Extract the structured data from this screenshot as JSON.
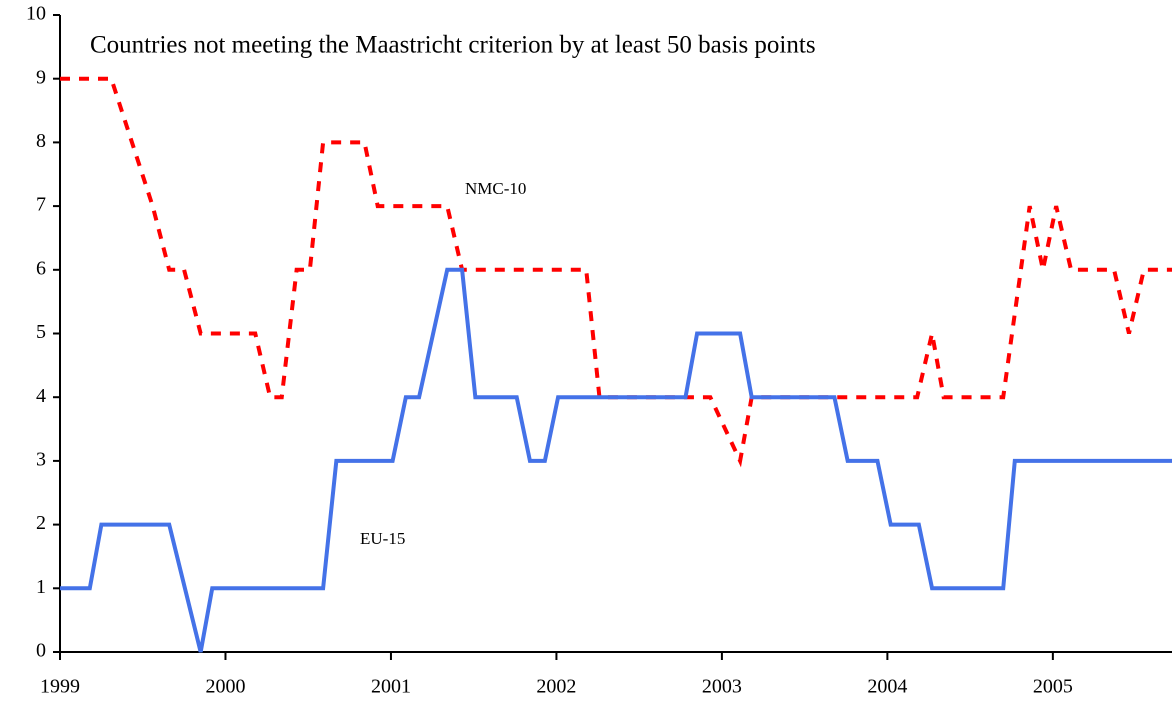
{
  "chart_data": {
    "type": "line",
    "title": "Countries not meeting the Maastricht criterion by at least 50 basis points",
    "xlim": [
      1999,
      2005.72
    ],
    "xticks": [
      1999,
      2000,
      2001,
      2002,
      2003,
      2004,
      2005
    ],
    "ylim": [
      0,
      10
    ],
    "yticks": [
      0,
      1,
      2,
      3,
      4,
      5,
      6,
      7,
      8,
      9,
      10
    ],
    "series": [
      {
        "name": "NMC-10",
        "color": "#ff0000",
        "dash": true,
        "x": [
          1999.0,
          1999.31,
          1999.56,
          1999.66,
          1999.75,
          1999.85,
          2000.18,
          2000.27,
          2000.34,
          2000.43,
          2000.51,
          2000.59,
          2000.84,
          2000.92,
          2001.34,
          2001.43,
          2002.18,
          2002.26,
          2002.93,
          2003.11,
          2003.18,
          2004.18,
          2004.27,
          2004.34,
          2004.7,
          2004.86,
          2004.94,
          2005.02,
          2005.11,
          2005.37,
          2005.46,
          2005.55,
          2005.72
        ],
        "values": [
          9,
          9,
          7,
          6,
          6,
          5,
          5,
          4,
          4,
          6,
          6,
          8,
          8,
          7,
          7,
          6,
          6,
          4,
          4,
          3,
          4,
          4,
          5,
          4,
          4,
          7,
          6,
          7,
          6,
          6,
          5,
          6,
          6
        ]
      },
      {
        "name": "EU-15",
        "color": "#4472e8",
        "dash": false,
        "x": [
          1999.0,
          1999.18,
          1999.25,
          1999.66,
          1999.85,
          1999.92,
          2000.59,
          2000.67,
          2001.01,
          2001.09,
          2001.17,
          2001.34,
          2001.43,
          2001.51,
          2001.76,
          2001.84,
          2001.93,
          2002.01,
          2002.78,
          2002.85,
          2003.11,
          2003.18,
          2003.68,
          2003.76,
          2003.94,
          2004.02,
          2004.19,
          2004.27,
          2004.7,
          2004.77,
          2005.72
        ],
        "values": [
          1,
          1,
          2,
          2,
          0,
          1,
          1,
          3,
          3,
          4,
          4,
          6,
          6,
          4,
          4,
          3,
          3,
          4,
          4,
          5,
          5,
          4,
          4,
          3,
          3,
          2,
          2,
          1,
          1,
          3,
          3
        ]
      }
    ]
  }
}
